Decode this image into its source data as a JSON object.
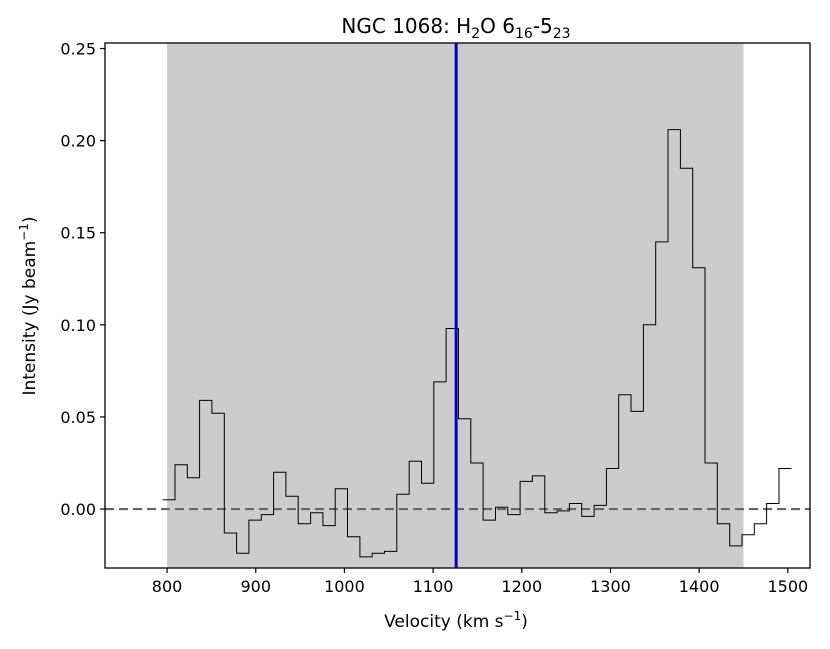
{
  "chart_data": {
    "type": "line",
    "title": {
      "main": "NGC 1068: H",
      "sub_h2o": "2",
      "mid": "O 6",
      "sub_upper": "16",
      "dash": "-5",
      "sub_lower": "23"
    },
    "xlabel": {
      "main": "Velocity (km s",
      "sup": "−1",
      "close": ")"
    },
    "ylabel": {
      "main": "Intensity (Jy beam",
      "sup": "−1",
      "close": ")"
    },
    "xlim": [
      730,
      1525
    ],
    "ylim": [
      -0.032,
      0.253
    ],
    "xticks": [
      800,
      900,
      1000,
      1100,
      1200,
      1300,
      1400,
      1500
    ],
    "xtick_labels": [
      "800",
      "900",
      "1000",
      "1100",
      "1200",
      "1300",
      "1400",
      "1500"
    ],
    "yticks": [
      0.0,
      0.05,
      0.1,
      0.15,
      0.2,
      0.25
    ],
    "ytick_labels": [
      "0.00",
      "0.05",
      "0.10",
      "0.15",
      "0.20",
      "0.25"
    ],
    "shaded_region": {
      "x_start": 800,
      "x_end": 1450,
      "color": "#cccccc"
    },
    "vertical_line": {
      "x": 1126,
      "color": "#0000cc"
    },
    "zero_line": {
      "y": 0.0,
      "color": "#666666",
      "style": "dashed"
    },
    "series": [
      {
        "style": "steps",
        "color": "#000000",
        "bin_width": 13.9,
        "x_start": 795,
        "values": [
          0.005,
          0.024,
          0.017,
          0.059,
          0.052,
          -0.013,
          -0.024,
          -0.006,
          -0.003,
          0.02,
          0.007,
          -0.008,
          -0.002,
          -0.009,
          0.011,
          -0.015,
          -0.026,
          -0.024,
          -0.023,
          0.008,
          0.026,
          0.014,
          0.069,
          0.098,
          0.049,
          0.025,
          -0.006,
          0.001,
          -0.003,
          0.015,
          0.018,
          -0.002,
          -0.001,
          0.003,
          -0.004,
          0.002,
          0.022,
          0.062,
          0.053,
          0.1,
          0.145,
          0.206,
          0.185,
          0.131,
          0.025,
          -0.008,
          -0.02,
          -0.014,
          -0.008,
          0.003,
          0.022
        ]
      }
    ],
    "grid": false,
    "legend": "none"
  }
}
